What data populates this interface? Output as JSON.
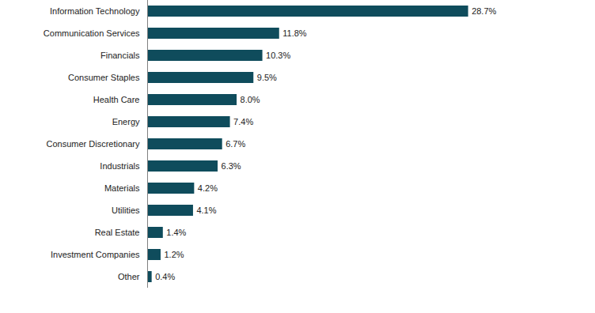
{
  "chart_data": {
    "type": "bar",
    "orientation": "horizontal",
    "categories": [
      "Information Technology",
      "Communication Services",
      "Financials",
      "Consumer Staples",
      "Health Care",
      "Energy",
      "Consumer Discretionary",
      "Industrials",
      "Materials",
      "Utilities",
      "Real Estate",
      "Investment Companies",
      "Other"
    ],
    "values": [
      28.7,
      11.8,
      10.3,
      9.5,
      8.0,
      7.4,
      6.7,
      6.3,
      4.2,
      4.1,
      1.4,
      1.2,
      0.4
    ],
    "value_labels": [
      "28.7%",
      "11.8%",
      "10.3%",
      "9.5%",
      "8.0%",
      "7.4%",
      "6.7%",
      "6.3%",
      "4.2%",
      "4.1%",
      "1.4%",
      "1.2%",
      "0.4%"
    ],
    "color": "#0f4c5c",
    "xlim": [
      0,
      30
    ],
    "xticks": [],
    "grid": false,
    "data_labels": true,
    "tick_labels": "y"
  }
}
